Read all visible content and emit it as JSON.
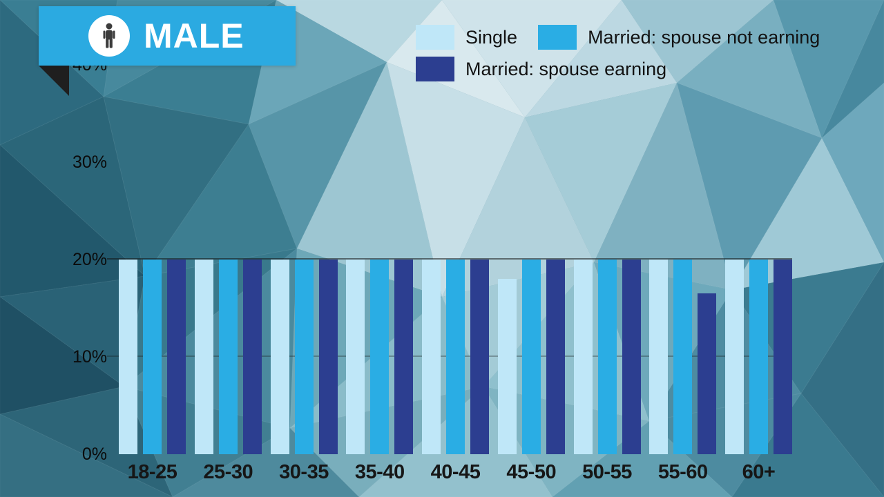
{
  "header": {
    "title": "MALE",
    "icon": "male-pictogram-icon"
  },
  "legend": [
    {
      "label": "Single",
      "color": "#bfe7f8"
    },
    {
      "label": "Married: spouse not earning",
      "color": "#2aade4"
    },
    {
      "label": "Married: spouse earning",
      "color": "#2c3e90"
    }
  ],
  "chart_data": {
    "type": "bar",
    "title": "MALE",
    "categories": [
      "18-25",
      "25-30",
      "30-35",
      "35-40",
      "40-45",
      "45-50",
      "50-55",
      "55-60",
      "60+"
    ],
    "series": [
      {
        "name": "Single",
        "color": "#bfe7f8",
        "values": [
          20,
          20,
          20,
          20,
          20,
          18,
          20,
          20,
          20
        ]
      },
      {
        "name": "Married: spouse not earning",
        "color": "#2aade4",
        "values": [
          20,
          20,
          20,
          20,
          20,
          20,
          20,
          20,
          20
        ]
      },
      {
        "name": "Married: spouse earning",
        "color": "#2c3e90",
        "values": [
          20,
          20,
          20,
          20,
          20,
          20,
          20,
          16.5,
          20
        ]
      }
    ],
    "xlabel": "",
    "ylabel": "",
    "ylim": [
      0,
      40
    ],
    "y_ticks": [
      {
        "value": 0,
        "label": "0%"
      },
      {
        "value": 10,
        "label": "10%"
      },
      {
        "value": 20,
        "label": "20%"
      },
      {
        "value": 30,
        "label": "30%"
      },
      {
        "value": 40,
        "label": "40%"
      }
    ],
    "gridlines": [
      10,
      20
    ],
    "legend_position": "top-center",
    "grid": true
  }
}
